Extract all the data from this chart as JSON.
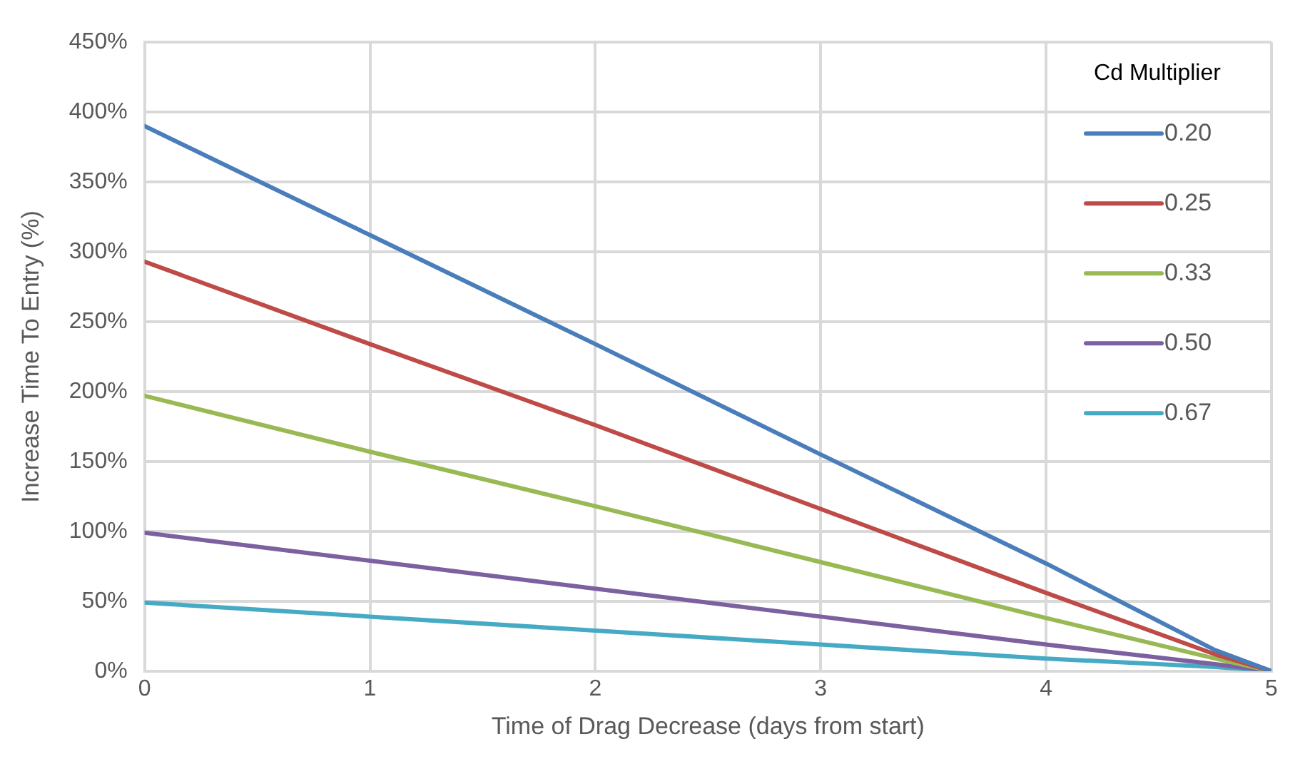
{
  "chart_data": {
    "type": "line",
    "xlabel": "Time of Drag Decrease (days from start)",
    "ylabel": "Increase Time To Entry (%)",
    "legend_title": "Cd Multiplier",
    "legend": "top right",
    "grid": true,
    "marker": "none",
    "line_style": "solid",
    "x": [
      0,
      1,
      2,
      3,
      4,
      4.75,
      5
    ],
    "xlim": [
      0,
      5
    ],
    "xticks": [
      0,
      1,
      2,
      3,
      4,
      5
    ],
    "ylim": [
      0,
      450
    ],
    "yticks": [
      {
        "value": 0,
        "label": "0%"
      },
      {
        "value": 50,
        "label": "50%"
      },
      {
        "value": 100,
        "label": "100%"
      },
      {
        "value": 150,
        "label": "150%"
      },
      {
        "value": 200,
        "label": "200%"
      },
      {
        "value": 250,
        "label": "250%"
      },
      {
        "value": 300,
        "label": "300%"
      },
      {
        "value": 350,
        "label": "350%"
      },
      {
        "value": 400,
        "label": "400%"
      },
      {
        "value": 450,
        "label": "450%"
      }
    ],
    "series": [
      {
        "name": "0.20",
        "color": "#4a7ebb",
        "values": [
          390,
          312,
          234,
          155,
          77,
          15,
          0
        ]
      },
      {
        "name": "0.25",
        "color": "#be4b48",
        "values": [
          293,
          234,
          176,
          116,
          56,
          12,
          0
        ]
      },
      {
        "name": "0.33",
        "color": "#98b954",
        "values": [
          197,
          157,
          118,
          78,
          38,
          9,
          0
        ]
      },
      {
        "name": "0.50",
        "color": "#7d60a0",
        "values": [
          99,
          79,
          59,
          39,
          19,
          5,
          0
        ]
      },
      {
        "name": "0.67",
        "color": "#46aac5",
        "values": [
          49,
          39,
          29,
          19,
          9,
          3,
          0
        ]
      }
    ]
  }
}
